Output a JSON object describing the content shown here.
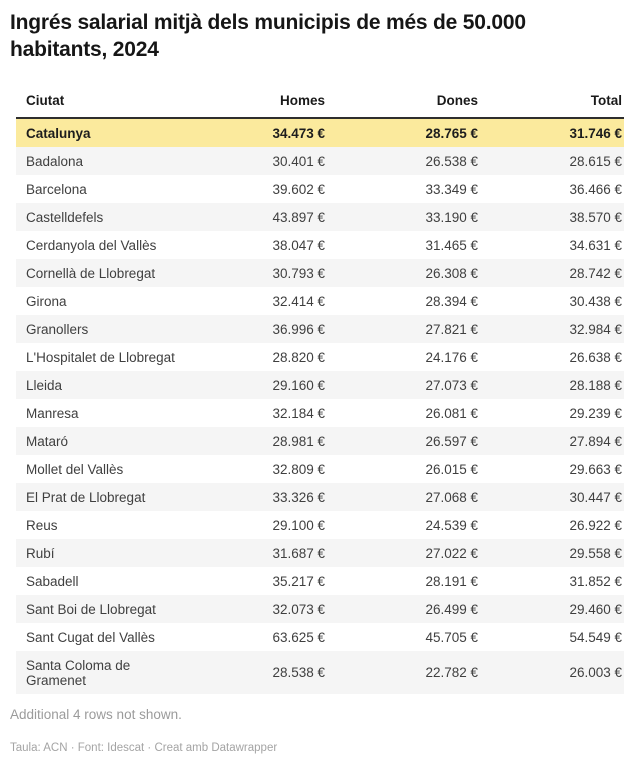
{
  "header": {
    "title": "Ingrés salarial mitjà dels municipis de més de 50.000 habitants, 2024"
  },
  "chart_data": {
    "type": "table",
    "title": "Ingrés salarial mitjà dels municipis de més de 50.000 habitants, 2024",
    "columns": [
      "Ciutat",
      "Homes",
      "Dones",
      "Total"
    ],
    "highlighted_row": "Catalunya",
    "rows": [
      {
        "ciutat": "Catalunya",
        "homes": "34.473 €",
        "dones": "28.765 €",
        "total": "31.746 €",
        "highlight": true
      },
      {
        "ciutat": "Badalona",
        "homes": "30.401 €",
        "dones": "26.538 €",
        "total": "28.615 €"
      },
      {
        "ciutat": "Barcelona",
        "homes": "39.602 €",
        "dones": "33.349 €",
        "total": "36.466 €"
      },
      {
        "ciutat": "Castelldefels",
        "homes": "43.897 €",
        "dones": "33.190 €",
        "total": "38.570 €"
      },
      {
        "ciutat": "Cerdanyola del Vallès",
        "homes": "38.047 €",
        "dones": "31.465 €",
        "total": "34.631 €"
      },
      {
        "ciutat": "Cornellà de Llobregat",
        "homes": "30.793 €",
        "dones": "26.308 €",
        "total": "28.742 €"
      },
      {
        "ciutat": "Girona",
        "homes": "32.414 €",
        "dones": "28.394 €",
        "total": "30.438 €"
      },
      {
        "ciutat": "Granollers",
        "homes": "36.996 €",
        "dones": "27.821 €",
        "total": "32.984 €"
      },
      {
        "ciutat": "L'Hospitalet de Llobregat",
        "homes": "28.820 €",
        "dones": "24.176 €",
        "total": "26.638 €"
      },
      {
        "ciutat": "Lleida",
        "homes": "29.160 €",
        "dones": "27.073 €",
        "total": "28.188 €"
      },
      {
        "ciutat": "Manresa",
        "homes": "32.184 €",
        "dones": "26.081 €",
        "total": "29.239 €"
      },
      {
        "ciutat": "Mataró",
        "homes": "28.981 €",
        "dones": "26.597 €",
        "total": "27.894 €"
      },
      {
        "ciutat": "Mollet del Vallès",
        "homes": "32.809 €",
        "dones": "26.015 €",
        "total": "29.663 €"
      },
      {
        "ciutat": "El Prat de Llobregat",
        "homes": "33.326 €",
        "dones": "27.068 €",
        "total": "30.447 €"
      },
      {
        "ciutat": "Reus",
        "homes": "29.100 €",
        "dones": "24.539 €",
        "total": "26.922 €"
      },
      {
        "ciutat": "Rubí",
        "homes": "31.687 €",
        "dones": "27.022 €",
        "total": "29.558 €"
      },
      {
        "ciutat": "Sabadell",
        "homes": "35.217 €",
        "dones": "28.191 €",
        "total": "31.852 €"
      },
      {
        "ciutat": "Sant Boi de Llobregat",
        "homes": "32.073 €",
        "dones": "26.499 €",
        "total": "29.460 €"
      },
      {
        "ciutat": "Sant Cugat del Vallès",
        "homes": "63.625 €",
        "dones": "45.705 €",
        "total": "54.549 €"
      },
      {
        "ciutat": "Santa Coloma de Gramenet",
        "homes": "28.538 €",
        "dones": "22.782 €",
        "total": "26.003 €"
      }
    ],
    "note": "Additional 4 rows not shown.",
    "attribution_prefix": "Taula: ACN · Font: Idescat · ",
    "attribution_link": "Creat amb Datawrapper"
  },
  "colors": {
    "highlight": "#fbea9d",
    "zebra": "#f5f5f5",
    "header_border": "#2e2e2e",
    "text": "#3f3f3f",
    "muted": "#9b9b9b"
  }
}
